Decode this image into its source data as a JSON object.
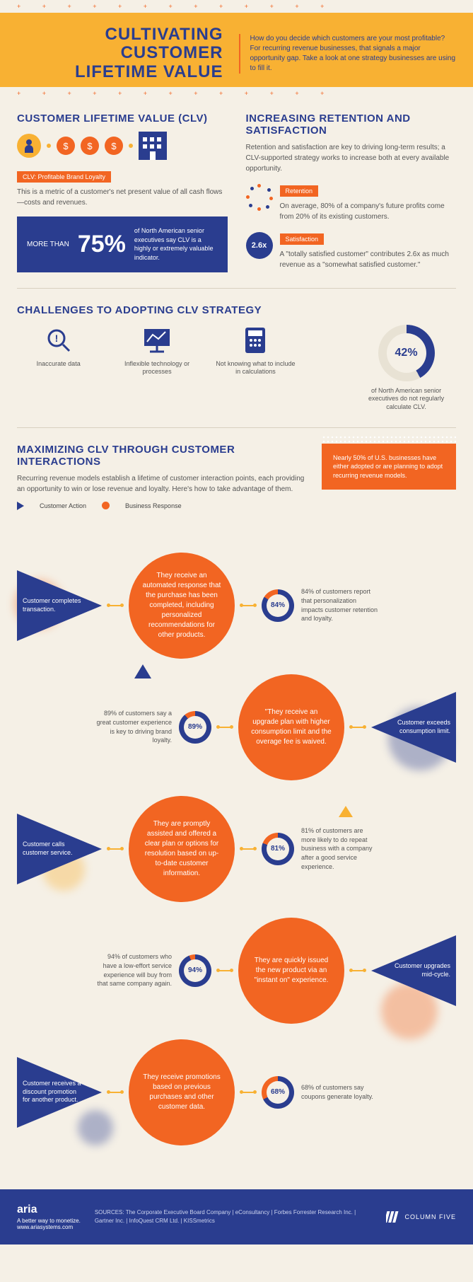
{
  "header": {
    "title_l1": "CULTIVATING CUSTOMER",
    "title_l2": "LIFETIME VALUE",
    "sub": "How do you decide which customers are your most profitable? For recurring revenue businesses, that signals a major opportunity gap. Take a look at one strategy businesses are using to fill it."
  },
  "clv": {
    "title": "CUSTOMER LIFETIME VALUE (CLV)",
    "tag": "CLV: Profitable Brand Loyalty",
    "desc": "This is a metric of a customer's net present value of all cash flows—costs and revenues.",
    "stat_pre": "MORE THAN",
    "stat_big": "75%",
    "stat_desc": "of North American senior executives say CLV is a highly or extremely valuable indicator."
  },
  "ret": {
    "title": "INCREASING RETENTION AND SATISFACTION",
    "intro": "Retention and satisfaction are key to driving long-term results; a CLV-supported strategy works to increase both at every available opportunity.",
    "r_tag": "Retention",
    "r_txt": "On average, 80% of a company's future profits come from 20% of its existing customers.",
    "s_tag": "Satisfaction",
    "s_val": "2.6x",
    "s_txt": "A \"totally satisfied customer\" contributes 2.6x as much revenue as a \"somewhat satisfied customer.\""
  },
  "chal": {
    "title": "CHALLENGES TO ADOPTING CLV STRATEGY",
    "items": [
      "Inaccurate data",
      "Inflexible technology or processes",
      "Not knowing what to include in calculations"
    ],
    "donut_pct": "42%",
    "donut_val": 42,
    "donut_txt": "of North American senior executives do not regularly calculate CLV."
  },
  "max": {
    "title": "MAXIMIZING CLV THROUGH CUSTOMER INTERACTIONS",
    "intro": "Recurring revenue models establish a lifetime of customer interaction points, each providing an opportunity to win or lose revenue and loyalty. Here's how to take advantage of them.",
    "leg_a": "Customer Action",
    "leg_b": "Business Response",
    "box": "Nearly 50% of U.S. businesses have either adopted or are planning to adopt recurring revenue models."
  },
  "flow": [
    {
      "dir": "l",
      "action": "Customer completes transaction.",
      "resp": "They receive an automated response that the purchase has been completed, including personalized recommendations for other products.",
      "pct": 84,
      "stat": "84% of customers report that personalization impacts customer retention and loyalty."
    },
    {
      "dir": "r",
      "action": "Customer exceeds consumption limit.",
      "resp": "\"They receive an upgrade plan with higher consumption limit and the overage fee is waived.",
      "pct": 89,
      "stat": "89% of customers say a great customer experience is key to driving brand loyalty."
    },
    {
      "dir": "l",
      "action": "Customer calls customer service.",
      "resp": "They are promptly assisted and offered a clear plan or options for resolution based on up-to-date customer information.",
      "pct": 81,
      "stat": "81% of customers are more likely to do repeat business with a company after a good service experience."
    },
    {
      "dir": "r",
      "action": "Customer upgrades mid-cycle.",
      "resp": "They are quickly issued the new product via an \"instant on\" experience.",
      "pct": 94,
      "stat": "94% of customers who have a low-effort service experience will buy from that same company again."
    },
    {
      "dir": "l",
      "action": "Customer receives a discount promotion for another product.",
      "resp": "They receive promotions based on previous purchases and other customer data.",
      "pct": 68,
      "stat": "68% of customers say coupons generate loyalty."
    }
  ],
  "footer": {
    "brand": "aria",
    "tag": "A better way to monetize.",
    "url": "www.ariasystems.com",
    "sources": "SOURCES: The Corporate Executive Board Company | eConsultancy | Forbes Forrester Research Inc. | Gartner Inc. | InfoQuest CRM Ltd. | KISSmetrics",
    "c5": "COLUMN FIVE"
  },
  "colors": {
    "blue": "#2a3d8f",
    "orange": "#f26522",
    "gold": "#f8b133",
    "cream": "#f5f0e6"
  }
}
